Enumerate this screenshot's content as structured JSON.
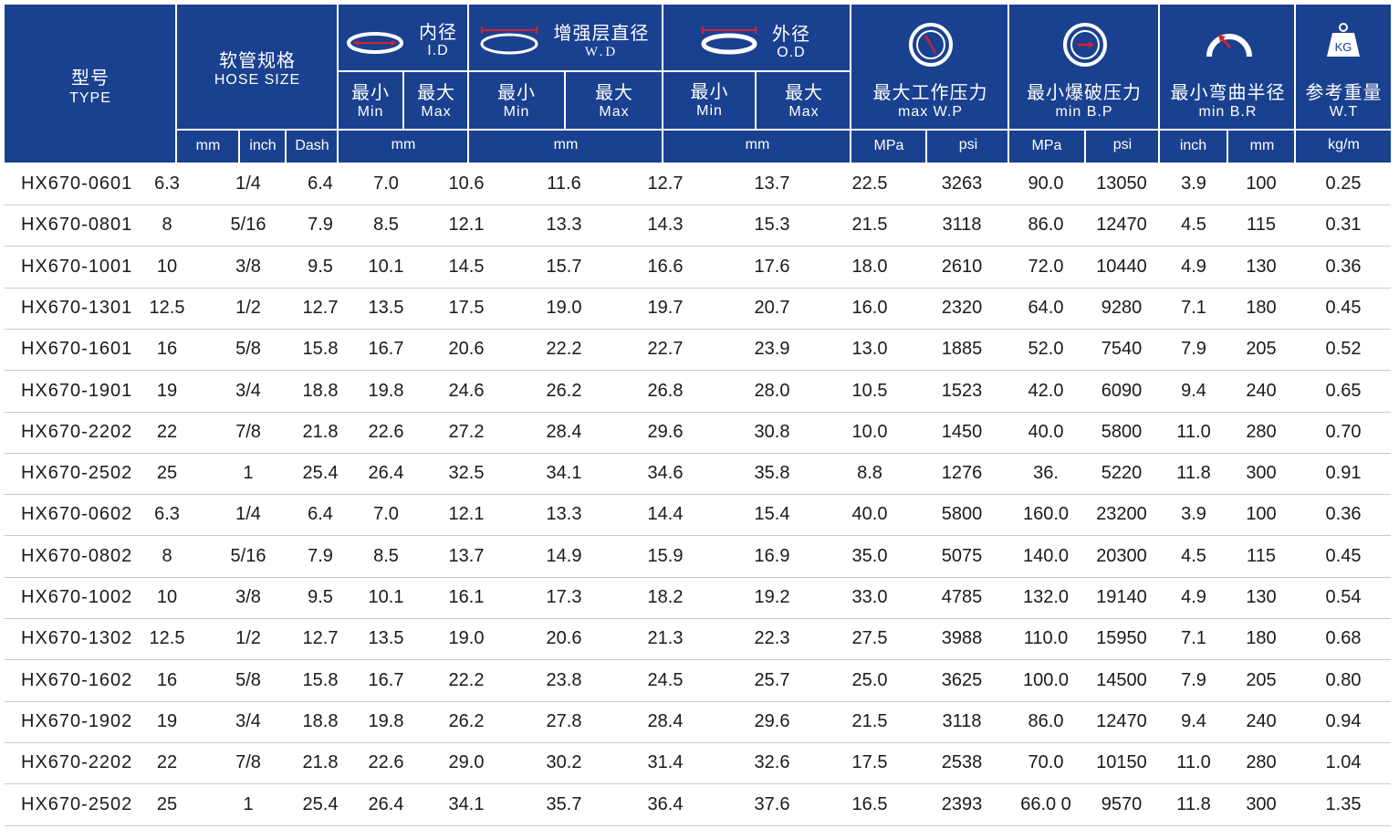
{
  "colors": {
    "header_bg": "#1a4190",
    "header_text": "#ffffff",
    "row_line": "#c9c9c9",
    "icon_red": "#d9202b"
  },
  "header": {
    "type_cn": "型号",
    "type_en": "TYPE",
    "size_cn": "软管规格",
    "size_en": "HOSE SIZE",
    "size_units": [
      "mm",
      "inch",
      "Dash"
    ],
    "id_cn": "内径",
    "id_en": "I.D",
    "wd_cn": "增强层直径",
    "wd_en": "W.D",
    "od_cn": "外径",
    "od_en": "O.D",
    "min_cn": "最小",
    "min_en": "Min",
    "max_cn": "最大",
    "max_en": "Max",
    "mm": "mm",
    "wp_cn": "最大工作压力",
    "wp_en": "max W.P",
    "bp_cn": "最小爆破压力",
    "bp_en": "min B.P",
    "br_cn": "最小弯曲半径",
    "br_en": "min B.R",
    "wt_cn": "参考重量",
    "wt_en": "W.T",
    "mpa": "MPa",
    "psi": "psi",
    "inch": "inch",
    "kgm": "kg/m",
    "kg_icon_text": "KG"
  },
  "rows": [
    [
      "HX670-0601",
      "6.3",
      "1/4",
      "6.4",
      "7.0",
      "10.6",
      "11.6",
      "12.7",
      "13.7",
      "22.5",
      "3263",
      "90.0",
      "13050",
      "3.9",
      "100",
      "0.25"
    ],
    [
      "HX670-0801",
      "8",
      "5/16",
      "7.9",
      "8.5",
      "12.1",
      "13.3",
      "14.3",
      "15.3",
      "21.5",
      "3118",
      "86.0",
      "12470",
      "4.5",
      "115",
      "0.31"
    ],
    [
      "HX670-1001",
      "10",
      "3/8",
      "9.5",
      "10.1",
      "14.5",
      "15.7",
      "16.6",
      "17.6",
      "18.0",
      "2610",
      "72.0",
      "10440",
      "4.9",
      "130",
      "0.36"
    ],
    [
      "HX670-1301",
      "12.5",
      "1/2",
      "12.7",
      "13.5",
      "17.5",
      "19.0",
      "19.7",
      "20.7",
      "16.0",
      "2320",
      "64.0",
      "9280",
      "7.1",
      "180",
      "0.45"
    ],
    [
      "HX670-1601",
      "16",
      "5/8",
      "15.8",
      "16.7",
      "20.6",
      "22.2",
      "22.7",
      "23.9",
      "13.0",
      "1885",
      "52.0",
      "7540",
      "7.9",
      "205",
      "0.52"
    ],
    [
      "HX670-1901",
      "19",
      "3/4",
      "18.8",
      "19.8",
      "24.6",
      "26.2",
      "26.8",
      "28.0",
      "10.5",
      "1523",
      "42.0",
      "6090",
      "9.4",
      "240",
      "0.65"
    ],
    [
      "HX670-2202",
      "22",
      "7/8",
      "21.8",
      "22.6",
      "27.2",
      "28.4",
      "29.6",
      "30.8",
      "10.0",
      "1450",
      "40.0",
      "5800",
      "11.0",
      "280",
      "0.70"
    ],
    [
      "HX670-2502",
      "25",
      "1",
      "25.4",
      "26.4",
      "32.5",
      "34.1",
      "34.6",
      "35.8",
      "8.8",
      "1276",
      "36.",
      "5220",
      "11.8",
      "300",
      "0.91"
    ],
    [
      "HX670-0602",
      "6.3",
      "1/4",
      "6.4",
      "7.0",
      "12.1",
      "13.3",
      "14.4",
      "15.4",
      "40.0",
      "5800",
      "160.0",
      "23200",
      "3.9",
      "100",
      "0.36"
    ],
    [
      "HX670-0802",
      "8",
      "5/16",
      "7.9",
      "8.5",
      "13.7",
      "14.9",
      "15.9",
      "16.9",
      "35.0",
      "5075",
      "140.0",
      "20300",
      "4.5",
      "115",
      "0.45"
    ],
    [
      "HX670-1002",
      "10",
      "3/8",
      "9.5",
      "10.1",
      "16.1",
      "17.3",
      "18.2",
      "19.2",
      "33.0",
      "4785",
      "132.0",
      "19140",
      "4.9",
      "130",
      "0.54"
    ],
    [
      "HX670-1302",
      "12.5",
      "1/2",
      "12.7",
      "13.5",
      "19.0",
      "20.6",
      "21.3",
      "22.3",
      "27.5",
      "3988",
      "110.0",
      "15950",
      "7.1",
      "180",
      "0.68"
    ],
    [
      "HX670-1602",
      "16",
      "5/8",
      "15.8",
      "16.7",
      "22.2",
      "23.8",
      "24.5",
      "25.7",
      "25.0",
      "3625",
      "100.0",
      "14500",
      "7.9",
      "205",
      "0.80"
    ],
    [
      "HX670-1902",
      "19",
      "3/4",
      "18.8",
      "19.8",
      "26.2",
      "27.8",
      "28.4",
      "29.6",
      "21.5",
      "3118",
      "86.0",
      "12470",
      "9.4",
      "240",
      "0.94"
    ],
    [
      "HX670-2202",
      "22",
      "7/8",
      "21.8",
      "22.6",
      "29.0",
      "30.2",
      "31.4",
      "32.6",
      "17.5",
      "2538",
      "70.0",
      "10150",
      "11.0",
      "280",
      "1.04"
    ],
    [
      "HX670-2502",
      "25",
      "1",
      "25.4",
      "26.4",
      "34.1",
      "35.7",
      "36.4",
      "37.6",
      "16.5",
      "2393",
      "66.0 0",
      "9570",
      "11.8",
      "300",
      "1.35"
    ]
  ]
}
